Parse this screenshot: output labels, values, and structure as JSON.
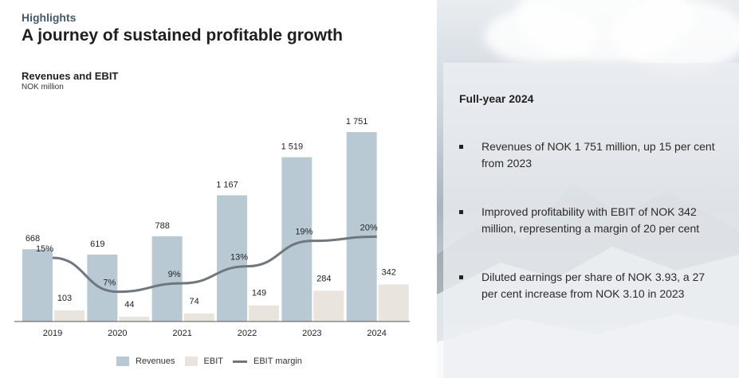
{
  "header": {
    "eyebrow": "Highlights",
    "title": "A journey of sustained profitable growth"
  },
  "chart_data": {
    "type": "bar",
    "title": "Revenues and EBIT",
    "subtitle": "NOK million",
    "categories": [
      "2019",
      "2020",
      "2021",
      "2022",
      "2023",
      "2024"
    ],
    "series": [
      {
        "name": "Revenues",
        "type": "bar",
        "values": [
          668,
          619,
          788,
          1167,
          1519,
          1751
        ],
        "labels": [
          "668",
          "619",
          "788",
          "1 167",
          "1 519",
          "1 751"
        ],
        "color": "#b9c9d3"
      },
      {
        "name": "EBIT",
        "type": "bar",
        "values": [
          103,
          44,
          74,
          149,
          284,
          342
        ],
        "labels": [
          "103",
          "44",
          "74",
          "149",
          "284",
          "342"
        ],
        "color": "#e9e4dd"
      },
      {
        "name": "EBIT margin",
        "type": "line",
        "values": [
          15,
          7,
          9,
          13,
          19,
          20
        ],
        "labels": [
          "15%",
          "7%",
          "9%",
          "13%",
          "19%",
          "20%"
        ],
        "color": "#6e777d"
      }
    ],
    "ylim": [
      0,
      1800
    ],
    "margin_ylim": [
      0,
      45
    ],
    "grid": false,
    "legend": "bottom"
  },
  "panel": {
    "heading": "Full-year 2024",
    "bullets": [
      "Revenues of NOK 1 751 million, up 15 per cent from 2023",
      "Improved profitability with EBIT of NOK 342 million, representing a margin of 20 per cent",
      "Diluted earnings per share of NOK 3.93, a 27 per cent increase from NOK 3.10 in 2023"
    ]
  }
}
